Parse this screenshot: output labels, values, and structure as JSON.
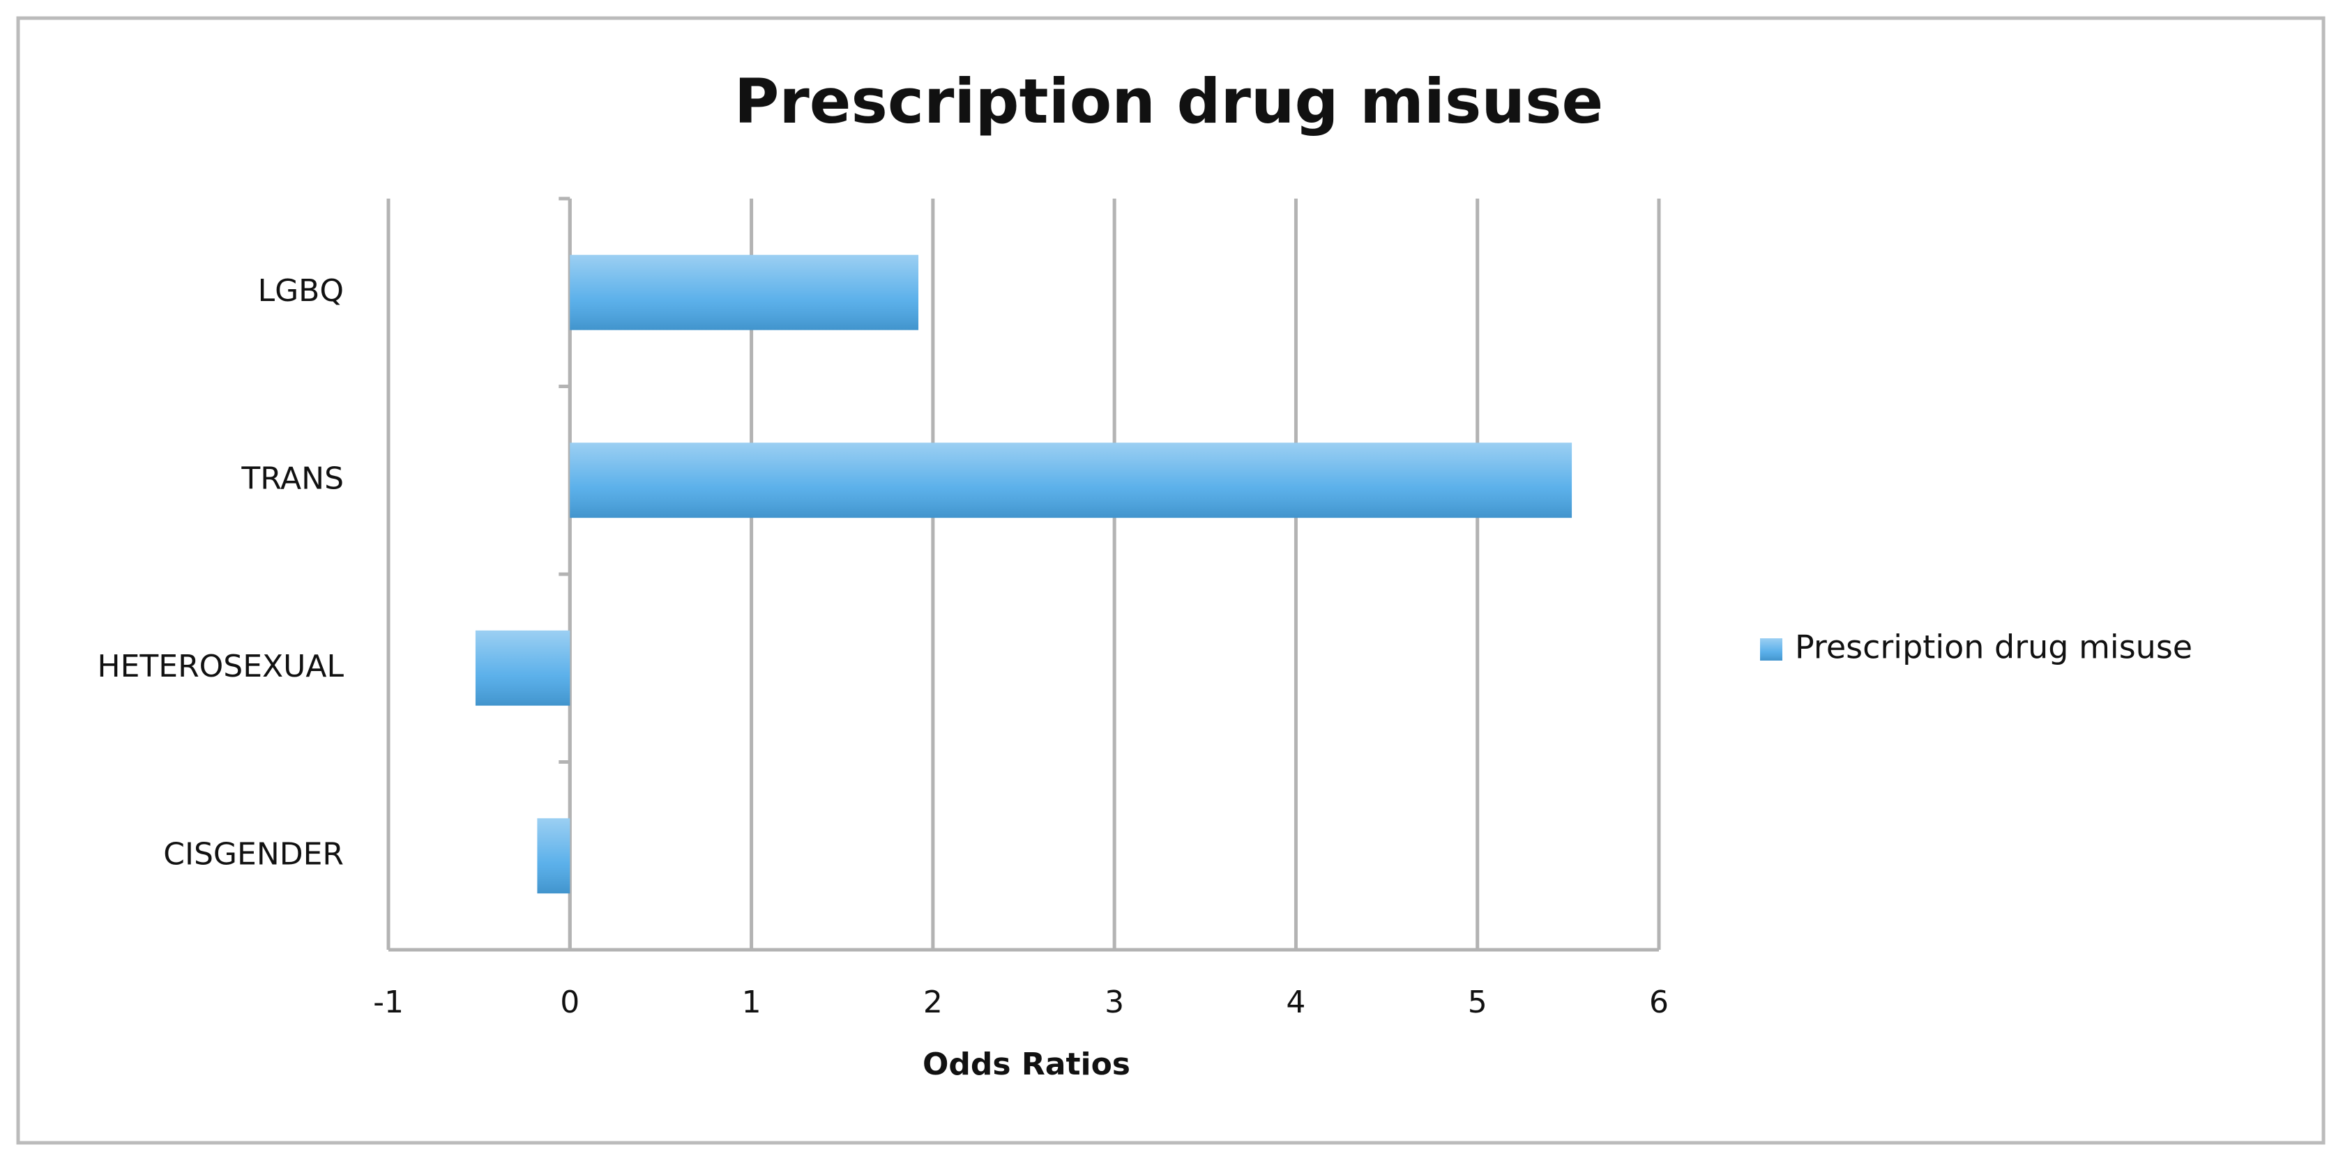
{
  "chart_data": {
    "type": "hbar",
    "title": "Prescription drug misuse",
    "categories": [
      "LGBQ",
      "TRANS",
      "HETEROSEXUAL",
      "CISGENDER"
    ],
    "series": [
      {
        "name": "Prescription drug misuse",
        "color": "#4aa8e8",
        "values": [
          1.92,
          5.52,
          -0.52,
          -0.18
        ]
      }
    ],
    "xlabel": "Odds Ratios",
    "xlim": [
      -1,
      6
    ],
    "xticks": [
      -1,
      0,
      1,
      2,
      3,
      4,
      5,
      6
    ],
    "grid": true,
    "legend": "right"
  }
}
